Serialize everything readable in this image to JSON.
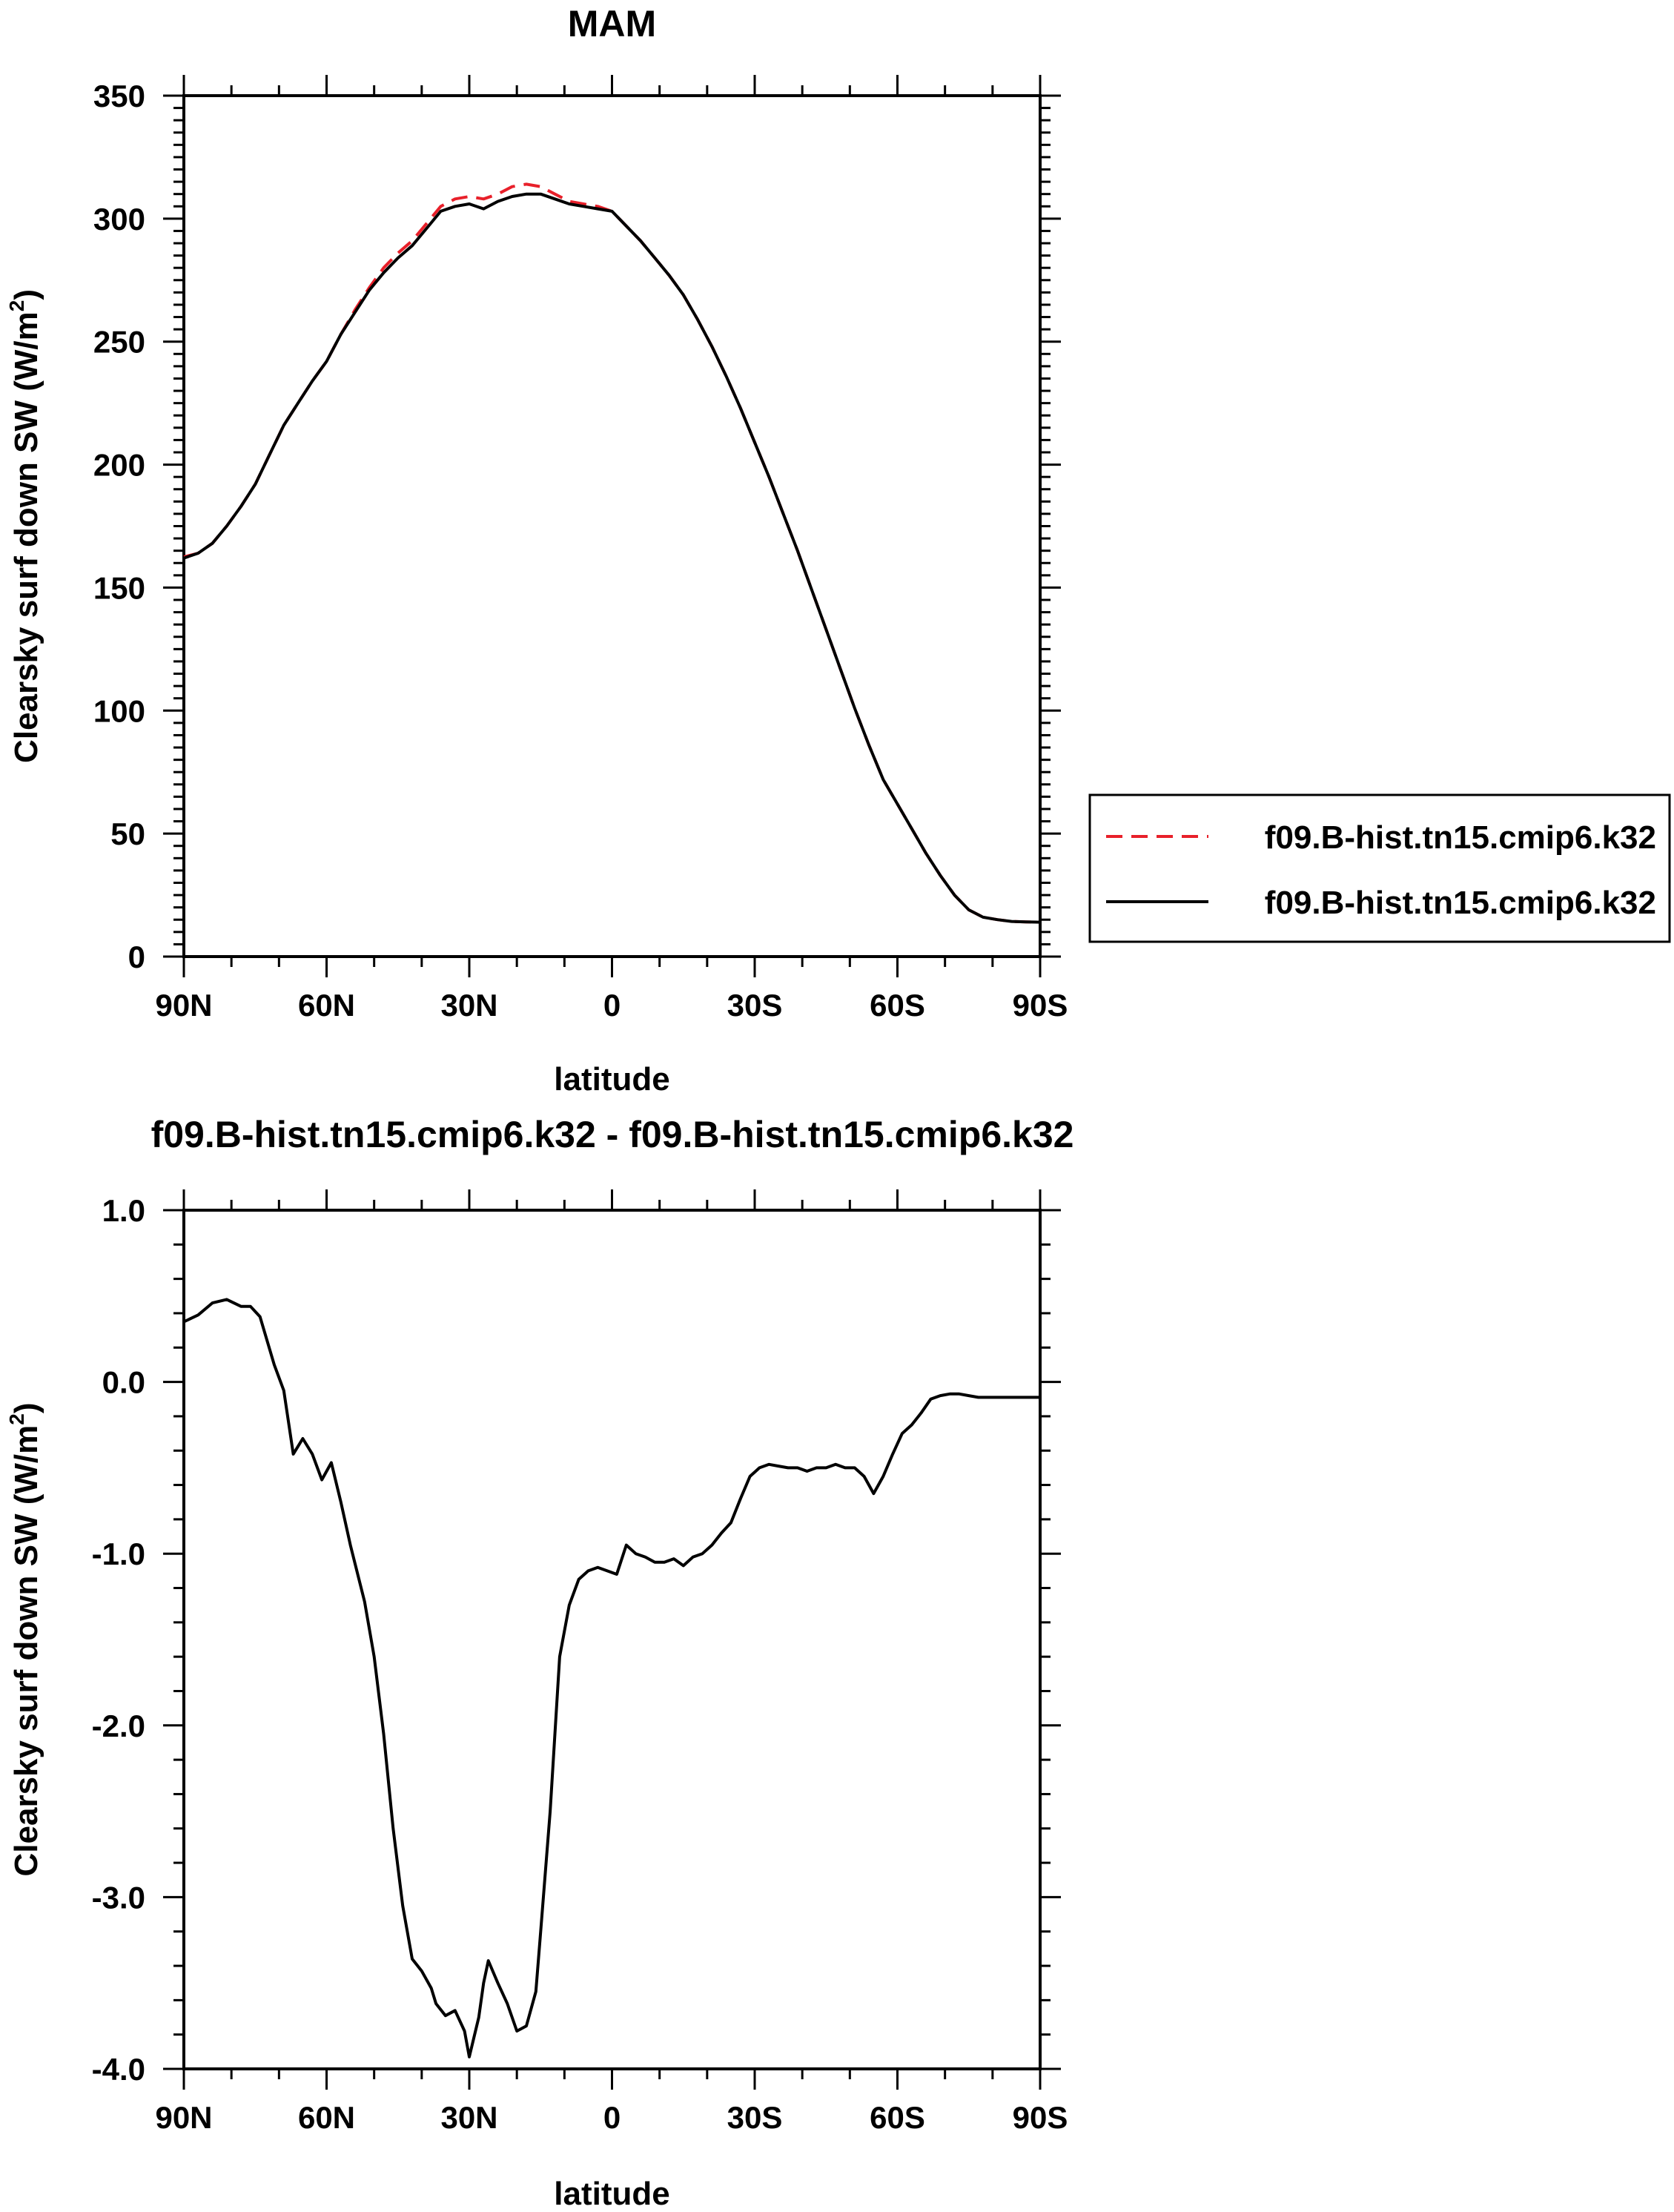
{
  "chart_data": [
    {
      "type": "line",
      "title": "MAM",
      "xlabel": "latitude",
      "ylabel_main": "Clearsky surf down SW (W/m",
      "ylabel_sup": "2",
      "ylabel_close": ")",
      "xlim": [
        90,
        -90
      ],
      "ylim": [
        0,
        350
      ],
      "xticks": [
        90,
        60,
        30,
        0,
        -30,
        -60,
        -90
      ],
      "xtick_labels": [
        "90N",
        "60N",
        "30N",
        "0",
        "30S",
        "60S",
        "90S"
      ],
      "yticks": [
        0,
        50,
        100,
        150,
        200,
        250,
        300,
        350
      ],
      "ytick_labels": [
        "0",
        "50",
        "100",
        "150",
        "200",
        "250",
        "300",
        "350"
      ],
      "legend_position": "right-outside",
      "series": [
        {
          "name": "f09.B-hist.tn15.cmip6.k32",
          "color": "#e8202a",
          "dash": "dashed",
          "x": [
            90,
            87,
            84,
            81,
            78,
            75,
            72,
            69,
            66,
            63,
            60,
            57,
            54,
            51,
            48,
            45,
            42,
            39,
            36,
            33,
            30,
            27,
            24,
            21,
            18,
            15,
            12,
            9,
            6,
            3,
            0,
            -3,
            -6,
            -9,
            -12,
            -15,
            -18,
            -21,
            -24,
            -27,
            -30,
            -33,
            -36,
            -39,
            -42,
            -45,
            -48,
            -51,
            -54,
            -57,
            -60,
            -63,
            -66,
            -69,
            -72,
            -75,
            -78,
            -81,
            -84,
            -87,
            -90
          ],
          "y": [
            162.5,
            164,
            168,
            175,
            183,
            192,
            204,
            216,
            225,
            234,
            242,
            253,
            263,
            272,
            280,
            286,
            291,
            298,
            305,
            308,
            309,
            308,
            310,
            313,
            314,
            313,
            310,
            307,
            306,
            305,
            303,
            297,
            291,
            284,
            277,
            269,
            259,
            248,
            236,
            223,
            209,
            195,
            180,
            165,
            149,
            133,
            117,
            101,
            86,
            72,
            62,
            52,
            42,
            33,
            25,
            19,
            16,
            15,
            14.3,
            14.1,
            14
          ]
        },
        {
          "name": "f09.B-hist.tn15.cmip6.k32",
          "color": "#000000",
          "dash": "solid",
          "x": [
            90,
            87,
            84,
            81,
            78,
            75,
            72,
            69,
            66,
            63,
            60,
            57,
            54,
            51,
            48,
            45,
            42,
            39,
            36,
            33,
            30,
            27,
            24,
            21,
            18,
            15,
            12,
            9,
            6,
            3,
            0,
            -3,
            -6,
            -9,
            -12,
            -15,
            -18,
            -21,
            -24,
            -27,
            -30,
            -33,
            -36,
            -39,
            -42,
            -45,
            -48,
            -51,
            -54,
            -57,
            -60,
            -63,
            -66,
            -69,
            -72,
            -75,
            -78,
            -81,
            -84,
            -87,
            -90
          ],
          "y": [
            162,
            164,
            168,
            175,
            183,
            192,
            204,
            216,
            225,
            234,
            242,
            253,
            262,
            271,
            278,
            284,
            289,
            296,
            303,
            305,
            306,
            304,
            307,
            309,
            310,
            310,
            308,
            306,
            305,
            304,
            303,
            297,
            291,
            284,
            277,
            269,
            259,
            248,
            236,
            223,
            209,
            195,
            180,
            165,
            149,
            133,
            117,
            101,
            86,
            72,
            62,
            52,
            42,
            33,
            25,
            19,
            16,
            15,
            14.3,
            14.1,
            14
          ]
        }
      ]
    },
    {
      "type": "line",
      "title": "f09.B-hist.tn15.cmip6.k32 - f09.B-hist.tn15.cmip6.k32",
      "xlabel": "latitude",
      "ylabel_main": "Clearsky surf down SW (W/m",
      "ylabel_sup": "2",
      "ylabel_close": ")",
      "xlim": [
        90,
        -90
      ],
      "ylim": [
        -4,
        1
      ],
      "xticks": [
        90,
        60,
        30,
        0,
        -30,
        -60,
        -90
      ],
      "xtick_labels": [
        "90N",
        "60N",
        "30N",
        "0",
        "30S",
        "60S",
        "90S"
      ],
      "yticks": [
        -4,
        -3,
        -2,
        -1,
        0,
        1
      ],
      "ytick_labels": [
        "-4.0",
        "-3.0",
        "-2.0",
        "-1.0",
        "0.0",
        "1.0"
      ],
      "series": [
        {
          "name": "",
          "color": "#000000",
          "dash": "solid",
          "x": [
            90,
            87,
            84,
            81,
            78,
            76,
            74,
            71,
            69,
            67,
            65,
            63,
            61,
            59,
            57,
            55,
            52,
            50,
            48,
            46,
            44,
            42,
            40,
            38,
            37,
            35,
            33,
            31,
            30,
            28,
            27,
            26,
            24,
            22,
            20,
            18,
            16,
            15,
            13,
            11,
            9,
            7,
            5,
            3,
            1,
            -1,
            -3,
            -5,
            -7,
            -9,
            -11,
            -13,
            -15,
            -17,
            -19,
            -21,
            -23,
            -25,
            -27,
            -29,
            -31,
            -33,
            -35,
            -37,
            -39,
            -41,
            -43,
            -45,
            -47,
            -49,
            -51,
            -53,
            -55,
            -57,
            -59,
            -61,
            -63,
            -65,
            -67,
            -69,
            -71,
            -73,
            -75,
            -77,
            -79,
            -81,
            -83,
            -85,
            -87,
            -90
          ],
          "y": [
            0.35,
            0.39,
            0.46,
            0.48,
            0.44,
            0.44,
            0.38,
            0.1,
            -0.05,
            -0.42,
            -0.33,
            -0.42,
            -0.57,
            -0.47,
            -0.7,
            -0.95,
            -1.28,
            -1.6,
            -2.05,
            -2.6,
            -3.05,
            -3.36,
            -3.43,
            -3.53,
            -3.62,
            -3.69,
            -3.66,
            -3.78,
            -3.93,
            -3.7,
            -3.5,
            -3.37,
            -3.5,
            -3.62,
            -3.78,
            -3.75,
            -3.55,
            -3.2,
            -2.5,
            -1.6,
            -1.3,
            -1.15,
            -1.1,
            -1.08,
            -1.1,
            -1.12,
            -0.95,
            -1.0,
            -1.02,
            -1.05,
            -1.05,
            -1.03,
            -1.07,
            -1.02,
            -1.0,
            -0.95,
            -0.88,
            -0.82,
            -0.68,
            -0.55,
            -0.5,
            -0.48,
            -0.49,
            -0.5,
            -0.5,
            -0.52,
            -0.5,
            -0.5,
            -0.48,
            -0.5,
            -0.5,
            -0.55,
            -0.65,
            -0.55,
            -0.42,
            -0.3,
            -0.25,
            -0.18,
            -0.1,
            -0.08,
            -0.07,
            -0.07,
            -0.08,
            -0.09,
            -0.09,
            -0.09,
            -0.09,
            -0.09,
            -0.09,
            -0.09
          ]
        }
      ]
    }
  ]
}
